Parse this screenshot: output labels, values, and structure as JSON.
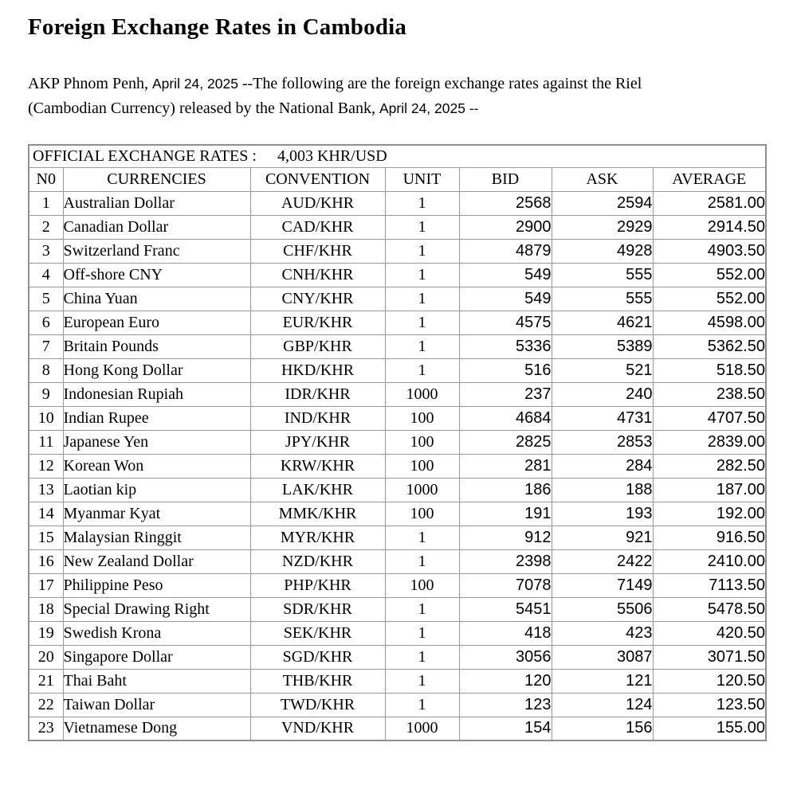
{
  "page": {
    "title": "Foreign Exchange Rates in Cambodia",
    "intro": {
      "segment1": "AKP Phnom Penh, ",
      "date1": "April 24, 2025 ",
      "segment2": "--The following are the foreign exchange rates against the Riel ",
      "segment3": "(Cambodian Currency) released by the National Bank, ",
      "date2": "April 24, 2025 --"
    }
  },
  "table": {
    "caption_label": "OFFICIAL EXCHANGE RATES :",
    "caption_value": "4,003 KHR/USD",
    "headers": [
      "N0",
      "CURRENCIES",
      "CONVENTION",
      "UNIT",
      "BID",
      "ASK",
      "AVERAGE"
    ],
    "column_names": [
      "row-number",
      "currency-name",
      "convention",
      "unit",
      "bid",
      "ask",
      "average"
    ],
    "rows": [
      [
        "1",
        "Australian Dollar",
        "AUD/KHR",
        "1",
        "2568",
        "2594",
        "2581.00"
      ],
      [
        "2",
        "Canadian Dollar",
        "CAD/KHR",
        "1",
        "2900",
        "2929",
        "2914.50"
      ],
      [
        "3",
        "Switzerland Franc",
        "CHF/KHR",
        "1",
        "4879",
        "4928",
        "4903.50"
      ],
      [
        "4",
        "Off-shore CNY",
        "CNH/KHR",
        "1",
        "549",
        "555",
        "552.00"
      ],
      [
        "5",
        "China Yuan",
        "CNY/KHR",
        "1",
        "549",
        "555",
        "552.00"
      ],
      [
        "6",
        "European Euro",
        "EUR/KHR",
        "1",
        "4575",
        "4621",
        "4598.00"
      ],
      [
        "7",
        "Britain Pounds",
        "GBP/KHR",
        "1",
        "5336",
        "5389",
        "5362.50"
      ],
      [
        "8",
        "Hong Kong Dollar",
        "HKD/KHR",
        "1",
        "516",
        "521",
        "518.50"
      ],
      [
        "9",
        "Indonesian Rupiah",
        "IDR/KHR",
        "1000",
        "237",
        "240",
        "238.50"
      ],
      [
        "10",
        "Indian Rupee",
        "IND/KHR",
        "100",
        "4684",
        "4731",
        "4707.50"
      ],
      [
        "11",
        "Japanese Yen",
        "JPY/KHR",
        "100",
        "2825",
        "2853",
        "2839.00"
      ],
      [
        "12",
        "Korean Won",
        "KRW/KHR",
        "100",
        "281",
        "284",
        "282.50"
      ],
      [
        "13",
        "Laotian kip",
        "LAK/KHR",
        "1000",
        "186",
        "188",
        "187.00"
      ],
      [
        "14",
        "Myanmar Kyat",
        "MMK/KHR",
        "100",
        "191",
        "193",
        "192.00"
      ],
      [
        "15",
        "Malaysian Ringgit",
        "MYR/KHR",
        "1",
        "912",
        "921",
        "916.50"
      ],
      [
        "16",
        "New Zealand Dollar",
        "NZD/KHR",
        "1",
        "2398",
        "2422",
        "2410.00"
      ],
      [
        "17",
        "Philippine Peso",
        "PHP/KHR",
        "100",
        "7078",
        "7149",
        "7113.50"
      ],
      [
        "18",
        "Special Drawing Right",
        "SDR/KHR",
        "1",
        "5451",
        "5506",
        "5478.50"
      ],
      [
        "19",
        "Swedish Krona",
        "SEK/KHR",
        "1",
        "418",
        "423",
        "420.50"
      ],
      [
        "20",
        "Singapore Dollar",
        "SGD/KHR",
        "1",
        "3056",
        "3087",
        "3071.50"
      ],
      [
        "21",
        "Thai Baht",
        "THB/KHR",
        "1",
        "120",
        "121",
        "120.50"
      ],
      [
        "22",
        "Taiwan Dollar",
        "TWD/KHR",
        "1",
        "123",
        "124",
        "123.50"
      ],
      [
        "23",
        "Vietnamese Dong",
        "VND/KHR",
        "1000",
        "154",
        "156",
        "155.00"
      ]
    ]
  }
}
